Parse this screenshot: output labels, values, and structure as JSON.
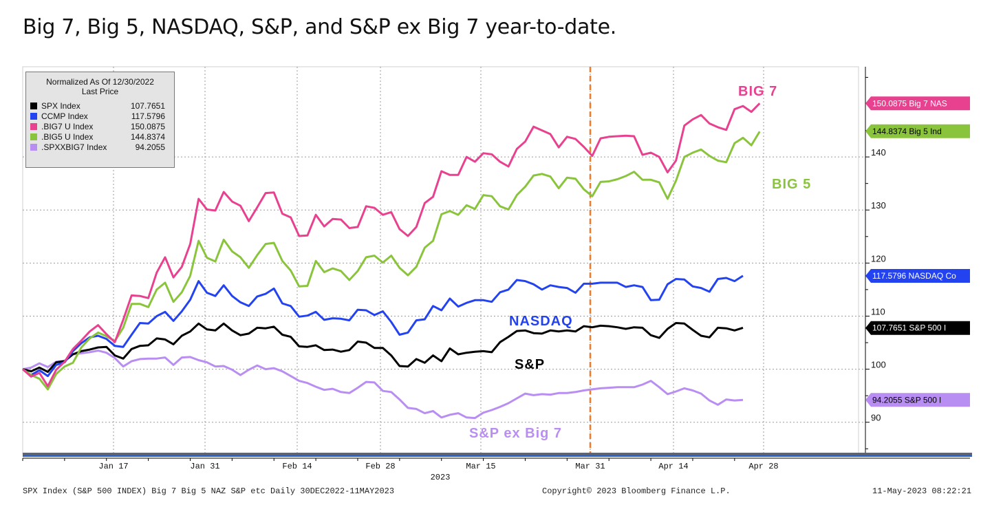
{
  "heading": "Big 7, Big 5, NASDAQ, S&P, and S&P ex Big 7 year-to-date.",
  "legend": {
    "header_line1": "Normalized As Of 12/30/2022",
    "header_line2": "Last Price",
    "items": [
      {
        "name": "SPX Index",
        "value": "107.7651",
        "color": "#000000"
      },
      {
        "name": "CCMP Index",
        "value": "117.5796",
        "color": "#2443f0"
      },
      {
        "name": ".BIG7 U Index",
        "value": "150.0875",
        "color": "#e8418f"
      },
      {
        "name": ".BIG5 U Index",
        "value": "144.8374",
        "color": "#8ac43c"
      },
      {
        "name": ".SPXXBIG7 Index",
        "value": "94.2055",
        "color": "#b98ef2"
      }
    ]
  },
  "footer": {
    "left": "SPX Index (S&P 500 INDEX) Big 7 Big 5 NAZ S&P etc  Daily 30DEC2022-11MAY2023",
    "center": "Copyright© 2023 Bloomberg Finance L.P.",
    "right": "11-May-2023 08:22:21"
  },
  "chart_data": {
    "type": "line",
    "x_tick_labels": [
      "Jan 17",
      "Jan 31",
      "Feb 14",
      "Feb 28",
      "Mar 15",
      "Mar 31",
      "Apr 14",
      "Apr 28"
    ],
    "x_year_label": "2023",
    "y_tick_labels": [
      "90",
      "100",
      "110",
      "120",
      "130",
      "140"
    ],
    "ylim": [
      84,
      157
    ],
    "y_axis_position": "right",
    "grid": true,
    "vertical_marker": {
      "at": "Mar 31",
      "color": "#f07a2a",
      "style": "dashed"
    },
    "series_labels": [
      {
        "text": "BIG 7",
        "color": "#e8418f"
      },
      {
        "text": "BIG 5",
        "color": "#8ac43c"
      },
      {
        "text": "NASDAQ",
        "color": "#2443f0"
      },
      {
        "text": "S&P",
        "color": "#000000"
      },
      {
        "text": "S&P ex Big 7",
        "color": "#b98ef2"
      }
    ],
    "end_labels": [
      {
        "text": "150.0875 Big 7 NAS",
        "value": 150.0875,
        "bg": "#e8418f",
        "fg": "#ffffff"
      },
      {
        "text": "144.8374 Big 5 Ind",
        "value": 144.8374,
        "bg": "#8ac43c",
        "fg": "#000000"
      },
      {
        "text": "117.5796 NASDAQ Co",
        "value": 117.5796,
        "bg": "#2443f0",
        "fg": "#ffffff"
      },
      {
        "text": "107.7651 S&P 500 I",
        "value": 107.7651,
        "bg": "#000000",
        "fg": "#ffffff"
      },
      {
        "text": "94.2055  S&P 500 l",
        "value": 94.2055,
        "bg": "#b98ef2",
        "fg": "#000000"
      }
    ],
    "series": [
      {
        "name": "SPX Index",
        "color": "#000000",
        "values": [
          100,
          99.6,
          100.3,
          99.5,
          101.3,
          101.5,
          102.8,
          103.4,
          103.7,
          104.1,
          104.2,
          102.6,
          102,
          103.8,
          104.4,
          104.5,
          105.8,
          105.6,
          104.7,
          106.3,
          107.1,
          108.6,
          107.5,
          107.3,
          108.6,
          107.3,
          106.4,
          106.7,
          107.8,
          107.7,
          108,
          106.5,
          106.1,
          104.3,
          104.2,
          104.5,
          103.6,
          103.7,
          103.3,
          103.6,
          105.2,
          105,
          104,
          104,
          102.6,
          100.6,
          100.5,
          101.9,
          101.2,
          102.6,
          101.5,
          103.9,
          102.8,
          103.1,
          103.3,
          103.4,
          103.2,
          105.1,
          106.1,
          107.2,
          107.3,
          106.8,
          106.7,
          107.3,
          107.1,
          107.3,
          107.1,
          108.1,
          107.9,
          108.2,
          108.1,
          107.9,
          107.6,
          107.9,
          107.8,
          106.4,
          105.9,
          107.6,
          108.7,
          108.6,
          107.4,
          106.3,
          106,
          107.8,
          107.7,
          107.3,
          107.8
        ]
      },
      {
        "name": "CCMP Index",
        "color": "#2443f0",
        "values": [
          100,
          98.9,
          99.8,
          98.7,
          100.8,
          101.3,
          103.4,
          104.9,
          106,
          106.3,
          105.7,
          104.4,
          104.2,
          106.5,
          108.7,
          108.6,
          110,
          110.8,
          109.1,
          110.9,
          113.1,
          116.6,
          114.4,
          113.8,
          115.8,
          113.8,
          112.6,
          111.9,
          113.7,
          114.2,
          115.2,
          112.4,
          111.9,
          109.9,
          110.1,
          110.8,
          109.3,
          109.6,
          109.5,
          109.2,
          111.2,
          111.1,
          110.2,
          110.9,
          108.9,
          106.5,
          106.9,
          109.2,
          109.4,
          111.9,
          111.1,
          113.3,
          111.8,
          112.5,
          113,
          113,
          112.7,
          114.5,
          115,
          116.8,
          116.6,
          116,
          115,
          115.8,
          115.5,
          115.3,
          114.4,
          116.1,
          116.1,
          116.3,
          116.3,
          116.3,
          115.5,
          115.8,
          115.5,
          113,
          113.1,
          116,
          117,
          116.9,
          115.6,
          115.3,
          114.6,
          117,
          117.2,
          116.6,
          117.6
        ]
      },
      {
        "name": ".BIG7 U Index",
        "color": "#e8418f",
        "values": [
          100,
          98.6,
          99.3,
          96.8,
          99.9,
          101.4,
          103.8,
          105.4,
          107.1,
          108.3,
          106.6,
          105.1,
          109.3,
          113.9,
          113.8,
          113.4,
          118.2,
          121.1,
          117.3,
          119.3,
          123.6,
          132.1,
          130.1,
          129.9,
          133.4,
          131.6,
          130.8,
          127.9,
          130.5,
          133.2,
          133.3,
          129.3,
          128.6,
          125.1,
          125.2,
          129.1,
          126.9,
          128.3,
          128.2,
          126.6,
          126.8,
          130.7,
          130.4,
          129.1,
          129.6,
          126.4,
          125.1,
          126.8,
          131.3,
          132.5,
          137.3,
          136.6,
          136.6,
          140,
          139.1,
          140.7,
          140.5,
          139.1,
          138.2,
          141.5,
          142.9,
          145.7,
          145,
          144.3,
          141.8,
          143.8,
          143.4,
          141.9,
          140.2,
          143.5,
          143.8,
          143.9,
          144,
          143.9,
          140.4,
          140.8,
          140,
          137.1,
          139.3,
          145.9,
          147.1,
          147.9,
          146.3,
          145.6,
          145.1,
          149,
          149.6,
          148.5,
          150.1
        ]
      },
      {
        "name": ".BIG5 U Index",
        "color": "#8ac43c",
        "values": [
          100,
          98.9,
          98.2,
          96.2,
          99.1,
          100.5,
          101.2,
          104.1,
          105.8,
          106.9,
          106.2,
          105.3,
          107.8,
          112.3,
          112.3,
          111.7,
          115,
          116.3,
          112.7,
          114.5,
          117.6,
          124.2,
          121,
          120.3,
          124.4,
          122.2,
          121.1,
          119.1,
          121.5,
          123.6,
          123.8,
          120.4,
          118.6,
          115.6,
          115.7,
          120.4,
          118.3,
          119,
          118.5,
          116.8,
          118.5,
          121.1,
          121.4,
          120.1,
          121.4,
          119.1,
          117.7,
          119.3,
          122.9,
          124.2,
          129.2,
          129.8,
          129.1,
          130.9,
          130.2,
          132.8,
          132.6,
          130.7,
          130.1,
          132.8,
          134.4,
          136.5,
          136.8,
          136.3,
          134.1,
          136.1,
          135.9,
          133.9,
          132.6,
          135.3,
          135.4,
          135.8,
          136.4,
          137.2,
          135.7,
          135.7,
          135.2,
          132.1,
          135.5,
          140,
          140.8,
          141.4,
          140.2,
          139.3,
          139,
          142.6,
          143.6,
          142.2,
          144.8
        ]
      },
      {
        "name": ".SPXXBIG7 Index",
        "color": "#b98ef2",
        "values": [
          100,
          100.3,
          101.1,
          100.4,
          101.4,
          101.6,
          102.8,
          103,
          103.2,
          103.5,
          103.1,
          102.1,
          100.5,
          101.5,
          101.9,
          102,
          102,
          102.2,
          100.8,
          102.2,
          102.3,
          101.7,
          101.3,
          100.5,
          100.6,
          99.9,
          98.9,
          99.9,
          100.7,
          100,
          100.2,
          99.6,
          98.7,
          97.8,
          97.4,
          96.7,
          96.1,
          96.3,
          95.7,
          95.5,
          96.5,
          97.6,
          97.5,
          95.9,
          95.7,
          94.3,
          92.7,
          92.5,
          91.7,
          92.1,
          90.9,
          91.4,
          91.7,
          90.9,
          90.8,
          91.8,
          92.3,
          92.9,
          93.6,
          94.5,
          95.4,
          95.1,
          95.3,
          95.2,
          95.5,
          95.5,
          95.7,
          96,
          96.2,
          96.4,
          96.5,
          96.6,
          96.6,
          96.6,
          97.1,
          97.8,
          96.6,
          95.3,
          95.8,
          96.4,
          96,
          95.4,
          94.1,
          93.3,
          94.3,
          94.1,
          94.2
        ]
      }
    ]
  }
}
